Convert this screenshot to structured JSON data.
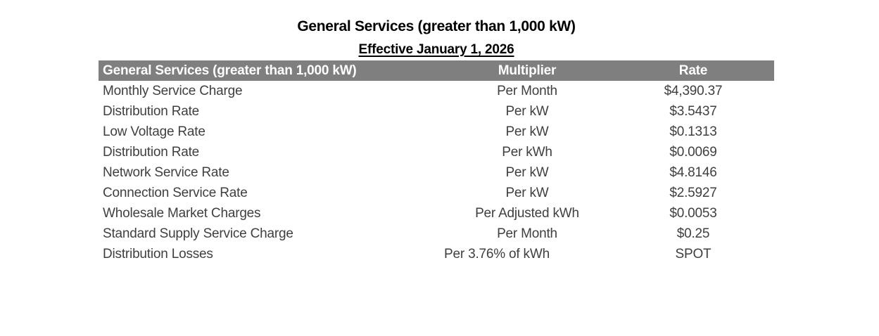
{
  "title": "General Services (greater than 1,000 kW)",
  "subtitle": "Effective January 1, 2026",
  "colors": {
    "header_background": "#7f7f7f",
    "header_text": "#ffffff",
    "body_text": "#3f3f3f",
    "title_text": "#000000",
    "page_background": "#ffffff"
  },
  "table": {
    "header": {
      "service": "General Services (greater than 1,000 kW)",
      "multiplier": "Multiplier",
      "rate": "Rate"
    },
    "rows": [
      {
        "service": "Monthly Service Charge",
        "multiplier": "Per Month",
        "rate": "$4,390.37"
      },
      {
        "service": "Distribution Rate",
        "multiplier": "Per kW",
        "rate": "$3.5437"
      },
      {
        "service": "Low Voltage Rate",
        "multiplier": "Per kW",
        "rate": "$0.1313"
      },
      {
        "service": "Distribution Rate",
        "multiplier": "Per kWh",
        "rate": "$0.0069"
      },
      {
        "service": "Network Service Rate",
        "multiplier": "Per kW",
        "rate": "$4.8146"
      },
      {
        "service": "Connection Service Rate",
        "multiplier": "Per kW",
        "rate": "$2.5927"
      },
      {
        "service": "Wholesale Market Charges",
        "multiplier": "Per Adjusted kWh",
        "rate": "$0.0053"
      },
      {
        "service": "Standard Supply Service Charge",
        "multiplier": "Per Month",
        "rate": "$0.25"
      },
      {
        "service": "Distribution Losses",
        "multiplier": "Per 3.76% of kWh",
        "rate": "SPOT"
      }
    ]
  }
}
